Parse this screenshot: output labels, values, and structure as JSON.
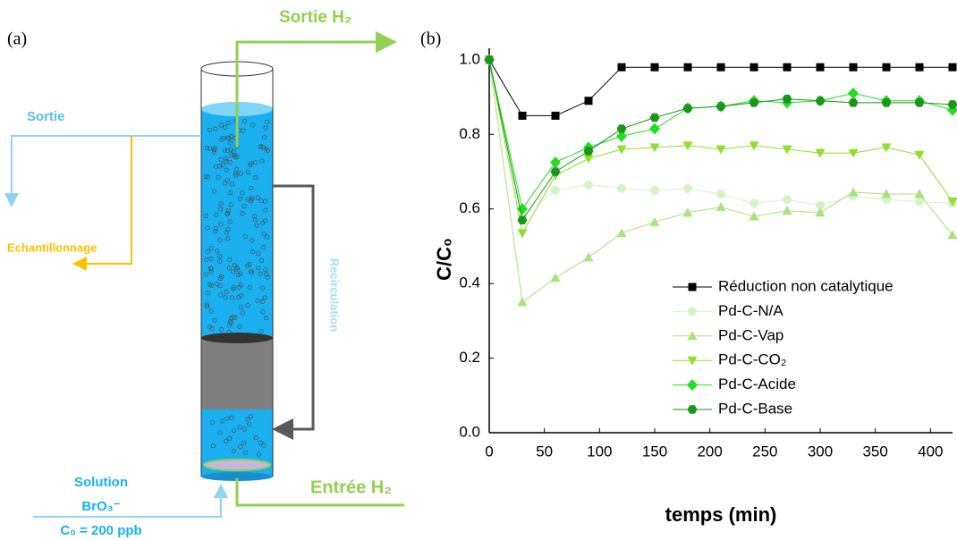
{
  "diagram": {
    "panel_label": "(a)",
    "h2_out": "Sortie H₂",
    "outlet": "Sortie",
    "sampling": "Echantillonnage",
    "recirculation": "Recirculation",
    "h2_in": "Entrée H₂",
    "solution": [
      "Solution",
      "BrO₃⁻",
      "C₀ = 200 ppb"
    ]
  },
  "chart_data": {
    "type": "line",
    "panel_label": "(b)",
    "x_label": "temps (min)",
    "y_label": "C/C₀",
    "x": [
      0,
      30,
      60,
      90,
      120,
      150,
      180,
      210,
      240,
      270,
      300,
      330,
      360,
      390,
      420
    ],
    "series": [
      {
        "name": "Réduction non catalytique",
        "color": "#000000",
        "marker": "square",
        "values": [
          1.0,
          0.85,
          0.85,
          0.89,
          0.98,
          0.98,
          0.98,
          0.98,
          0.98,
          0.98,
          0.98,
          0.98,
          0.98,
          0.98,
          0.98
        ]
      },
      {
        "name": "Pd-C-N/A",
        "color": "#d6f2c8",
        "marker": "circle",
        "values": [
          1.0,
          0.58,
          0.65,
          0.665,
          0.655,
          0.65,
          0.655,
          0.64,
          0.615,
          0.625,
          0.61,
          0.635,
          0.625,
          0.62,
          0.615
        ]
      },
      {
        "name": "Pd-C-Vap",
        "color": "#a9e27f",
        "marker": "triangle-up",
        "values": [
          1.0,
          0.35,
          0.415,
          0.47,
          0.535,
          0.565,
          0.59,
          0.605,
          0.58,
          0.595,
          0.59,
          0.645,
          0.64,
          0.64,
          0.53
        ]
      },
      {
        "name": "Pd-C-CO₂",
        "color": "#8fe02c",
        "marker": "triangle-down",
        "values": [
          1.0,
          0.535,
          0.69,
          0.735,
          0.76,
          0.765,
          0.77,
          0.76,
          0.77,
          0.76,
          0.75,
          0.75,
          0.765,
          0.745,
          0.62
        ]
      },
      {
        "name": "Pd-C-Acide",
        "color": "#22dd22",
        "marker": "diamond",
        "values": [
          1.0,
          0.6,
          0.725,
          0.765,
          0.795,
          0.815,
          0.87,
          0.875,
          0.89,
          0.885,
          0.89,
          0.91,
          0.89,
          0.89,
          0.865
        ]
      },
      {
        "name": "Pd-C-Base",
        "color": "#1a961a",
        "marker": "hexagon",
        "values": [
          1.0,
          0.57,
          0.7,
          0.755,
          0.815,
          0.845,
          0.87,
          0.875,
          0.885,
          0.895,
          0.89,
          0.885,
          0.885,
          0.885,
          0.88
        ]
      }
    ],
    "xlim": [
      0,
      420
    ],
    "xticks": [
      0,
      50,
      100,
      150,
      200,
      250,
      300,
      350,
      400
    ],
    "ylim": [
      0,
      1.05
    ],
    "yticks": [
      {
        "value": 0,
        "label": "0.0"
      },
      0.2,
      0.4,
      0.6,
      0.8,
      {
        "value": 1,
        "label": "1.0"
      }
    ],
    "legend": "lower-right"
  }
}
